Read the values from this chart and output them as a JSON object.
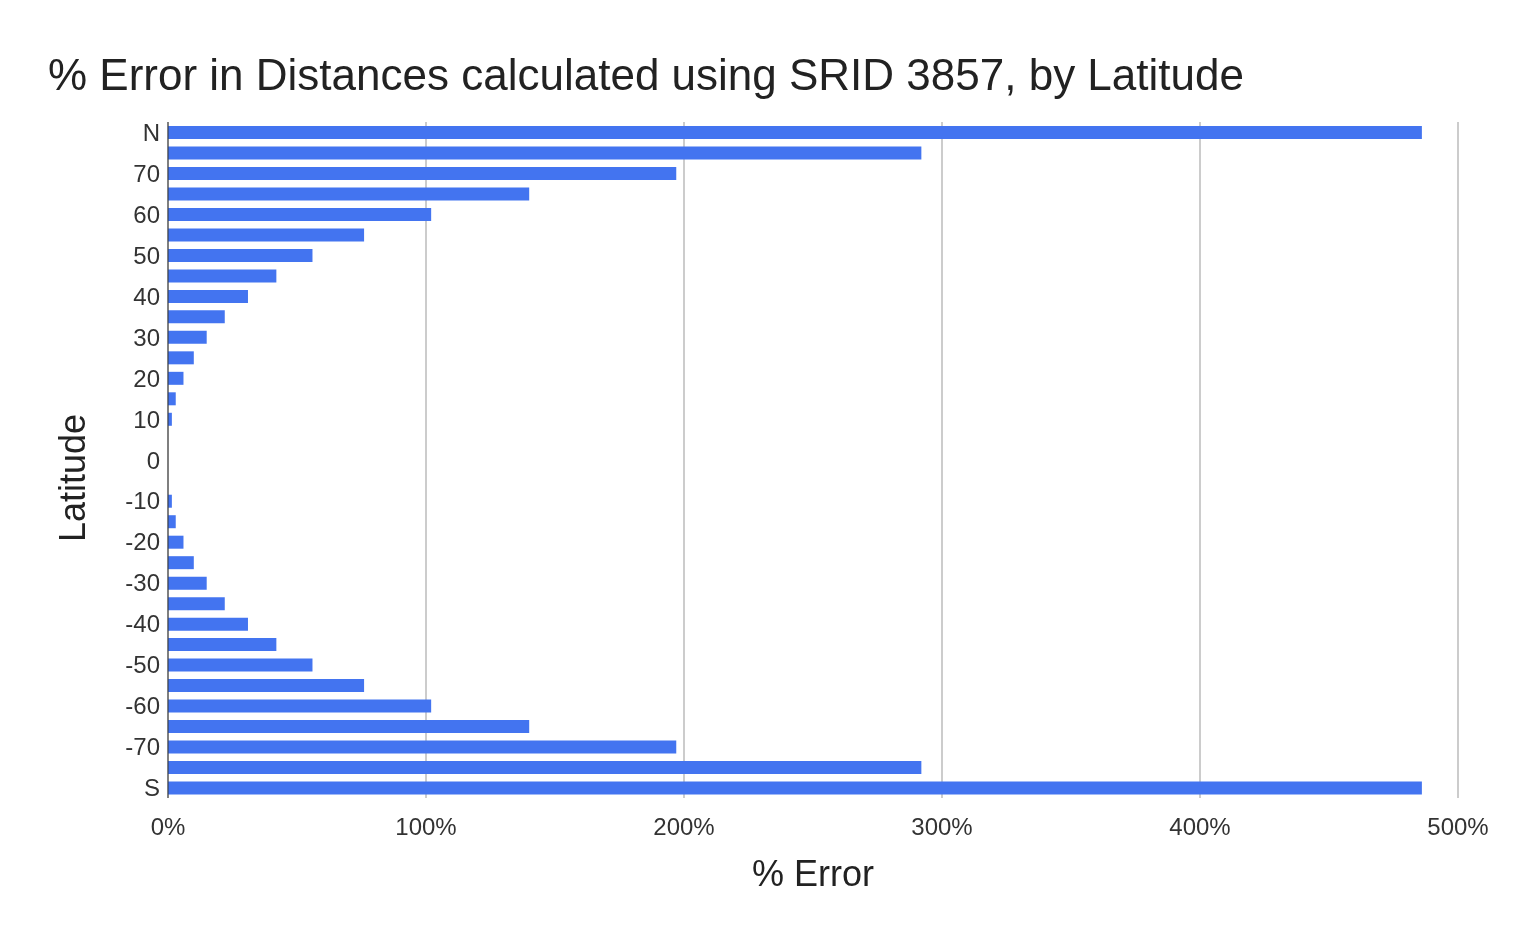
{
  "chart_data": {
    "type": "bar",
    "orientation": "horizontal",
    "title": "% Error in Distances calculated using SRID 3857, by Latitude",
    "xlabel": "% Error",
    "ylabel": "Latitude",
    "categories": [
      "N",
      null,
      "70",
      null,
      "60",
      null,
      "50",
      null,
      "40",
      null,
      "30",
      null,
      "20",
      null,
      "10",
      null,
      "0",
      null,
      "-10",
      null,
      "-20",
      null,
      "-30",
      null,
      "-40",
      null,
      "-50",
      null,
      "-60",
      null,
      "-70",
      null,
      "S"
    ],
    "values": [
      486,
      292,
      197,
      140,
      102,
      76,
      56,
      42,
      31,
      22,
      15,
      10,
      6,
      3,
      1.5,
      null,
      0,
      null,
      1.5,
      3,
      6,
      10,
      15,
      22,
      31,
      42,
      56,
      76,
      102,
      140,
      197,
      292,
      486
    ],
    "color": "#4374f0",
    "xlim": [
      0,
      500
    ],
    "xticks": [
      {
        "value": 0,
        "label": "0%"
      },
      {
        "value": 100,
        "label": "100%"
      },
      {
        "value": 200,
        "label": "200%"
      },
      {
        "value": 300,
        "label": "300%"
      },
      {
        "value": 400,
        "label": "400%"
      },
      {
        "value": 500,
        "label": "500%"
      }
    ],
    "grid": "x"
  }
}
